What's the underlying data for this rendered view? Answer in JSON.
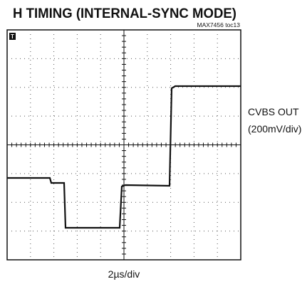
{
  "title": "H TIMING (INTERNAL-SYNC MODE)",
  "figure_id": "MAX7456 toc13",
  "trigger_marker": "T",
  "trace_label": "CVBS OUT",
  "vertical_scale": "(200mV/div)",
  "horizontal_scale": "2µs/div"
}
